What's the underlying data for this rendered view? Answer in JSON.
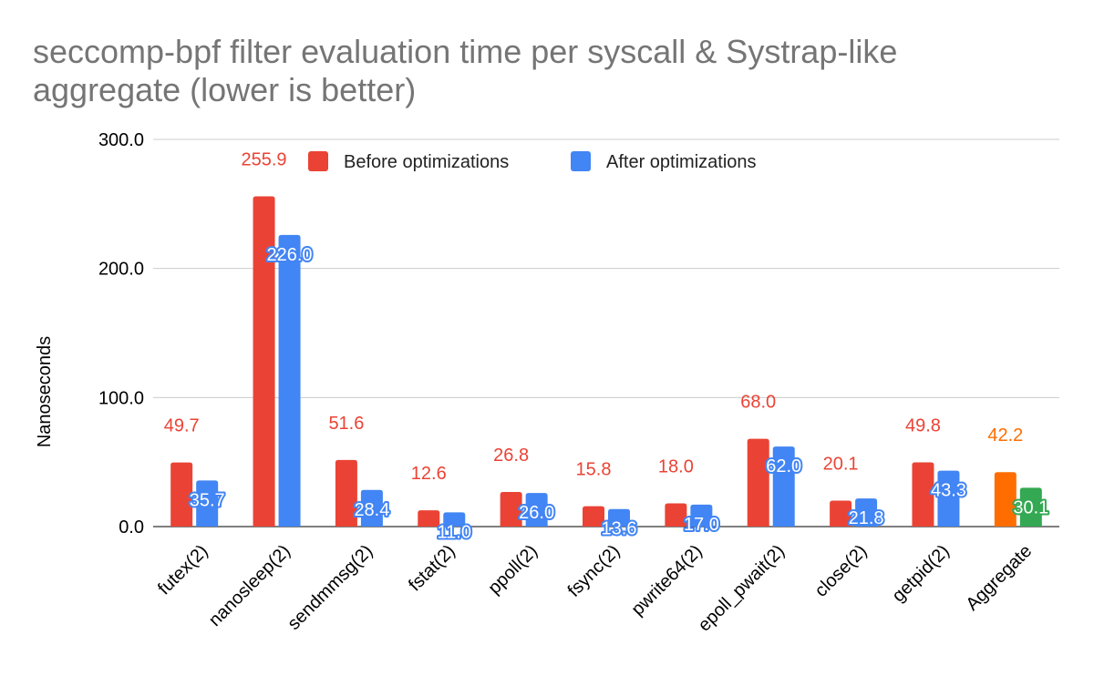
{
  "chart_data": {
    "type": "bar",
    "title": "seccomp-bpf filter evaluation time per syscall & Systrap-like aggregate (lower is better)",
    "xlabel": "",
    "ylabel": "Nanoseconds",
    "ylim": [
      0,
      300
    ],
    "yticks": [
      0,
      100,
      200,
      300
    ],
    "ytick_labels": [
      "0.0",
      "100.0",
      "200.0",
      "300.0"
    ],
    "grid": true,
    "legend_position": "top",
    "categories": [
      "futex(2)",
      "nanosleep(2)",
      "sendmmsg(2)",
      "fstat(2)",
      "ppoll(2)",
      "fsync(2)",
      "pwrite64(2)",
      "epoll_pwait(2)",
      "close(2)",
      "getpid(2)",
      "Aggregate"
    ],
    "series": [
      {
        "name": "Before optimizations",
        "color": "#ea4335",
        "values": [
          49.7,
          255.9,
          51.6,
          12.6,
          26.8,
          15.8,
          18.0,
          68.0,
          20.1,
          49.8,
          42.2
        ],
        "labels": [
          "49.7",
          "255.9",
          "51.6",
          "12.6",
          "26.8",
          "15.8",
          "18.0",
          "68.0",
          "20.1",
          "49.8",
          "42.2"
        ],
        "point_colors": [
          "#ea4335",
          "#ea4335",
          "#ea4335",
          "#ea4335",
          "#ea4335",
          "#ea4335",
          "#ea4335",
          "#ea4335",
          "#ea4335",
          "#ea4335",
          "#ff6d01"
        ]
      },
      {
        "name": "After optimizations",
        "color": "#4285f4",
        "values": [
          35.7,
          226.0,
          28.4,
          11.0,
          26.0,
          13.6,
          17.0,
          62.0,
          21.8,
          43.3,
          30.1
        ],
        "labels": [
          "35.7",
          "226.0",
          "28.4",
          "11.0",
          "26.0",
          "13.6",
          "17.0",
          "62.0",
          "21.8",
          "43.3",
          "30.1"
        ],
        "point_colors": [
          "#4285f4",
          "#4285f4",
          "#4285f4",
          "#4285f4",
          "#4285f4",
          "#4285f4",
          "#4285f4",
          "#4285f4",
          "#4285f4",
          "#4285f4",
          "#34a853"
        ]
      }
    ]
  }
}
